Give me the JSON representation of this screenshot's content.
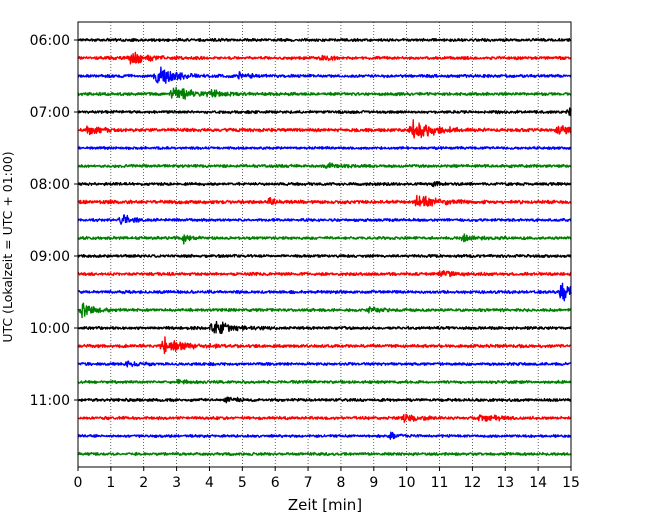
{
  "chart_data": {
    "type": "line",
    "subtype": "helicorder-seismogram",
    "title": "",
    "xlabel": "Zeit  [min]",
    "ylabel": "UTC (Lokalzeit = UTC + 01:00)",
    "xlim": [
      0,
      15
    ],
    "x_ticks": [
      0,
      1,
      2,
      3,
      4,
      5,
      6,
      7,
      8,
      9,
      10,
      11,
      12,
      13,
      14,
      15
    ],
    "x_tick_labels": [
      "0",
      "1",
      "2",
      "3",
      "4",
      "5",
      "6",
      "7",
      "8",
      "9",
      "10",
      "11",
      "12",
      "13",
      "14",
      "15"
    ],
    "vertical_grid": "dotted",
    "minutes_per_trace": 15,
    "start_time_utc": "06:00",
    "y_tick_labels": [
      "06:00",
      "07:00",
      "08:00",
      "09:00",
      "10:00",
      "11:00"
    ],
    "y_tick_trace_indices": [
      0,
      4,
      8,
      12,
      16,
      20
    ],
    "color_cycle": [
      "#000000",
      "#ff0000",
      "#0000ff",
      "#008000"
    ],
    "traces": [
      {
        "amplitude": 0.38,
        "events": []
      },
      {
        "amplitude": 0.4,
        "events": [
          {
            "t": 1.6,
            "a": 1.9,
            "w": 0.45
          },
          {
            "t": 7.4,
            "a": 1.3,
            "w": 0.2
          }
        ]
      },
      {
        "amplitude": 0.4,
        "events": [
          {
            "t": 2.4,
            "a": 2.4,
            "w": 0.5
          },
          {
            "t": 4.9,
            "a": 1.0,
            "w": 0.25
          }
        ]
      },
      {
        "amplitude": 0.4,
        "events": [
          {
            "t": 2.9,
            "a": 2.2,
            "w": 0.5
          },
          {
            "t": 4.0,
            "a": 0.9,
            "w": 0.3
          }
        ]
      },
      {
        "amplitude": 0.38,
        "events": [
          {
            "t": 14.9,
            "a": 1.6,
            "w": 0.15
          }
        ]
      },
      {
        "amplitude": 0.45,
        "events": [
          {
            "t": 0.3,
            "a": 1.4,
            "w": 0.3
          },
          {
            "t": 10.2,
            "a": 3.0,
            "w": 0.55
          },
          {
            "t": 14.6,
            "a": 1.2,
            "w": 0.4
          }
        ]
      },
      {
        "amplitude": 0.35,
        "events": []
      },
      {
        "amplitude": 0.38,
        "events": [
          {
            "t": 7.5,
            "a": 0.9,
            "w": 0.3
          }
        ]
      },
      {
        "amplitude": 0.38,
        "events": [
          {
            "t": 10.8,
            "a": 0.8,
            "w": 0.15
          }
        ]
      },
      {
        "amplitude": 0.45,
        "events": [
          {
            "t": 5.8,
            "a": 0.9,
            "w": 0.3
          },
          {
            "t": 10.3,
            "a": 1.9,
            "w": 0.5
          }
        ]
      },
      {
        "amplitude": 0.38,
        "events": [
          {
            "t": 1.3,
            "a": 1.5,
            "w": 0.3
          }
        ]
      },
      {
        "amplitude": 0.38,
        "events": [
          {
            "t": 3.2,
            "a": 1.3,
            "w": 0.15
          },
          {
            "t": 11.7,
            "a": 1.0,
            "w": 0.3
          }
        ]
      },
      {
        "amplitude": 0.38,
        "events": []
      },
      {
        "amplitude": 0.4,
        "events": [
          {
            "t": 11.0,
            "a": 0.9,
            "w": 0.3
          }
        ]
      },
      {
        "amplitude": 0.4,
        "events": [
          {
            "t": 14.7,
            "a": 2.7,
            "w": 0.45
          }
        ]
      },
      {
        "amplitude": 0.4,
        "events": [
          {
            "t": 0.1,
            "a": 2.6,
            "w": 0.25
          },
          {
            "t": 8.8,
            "a": 0.8,
            "w": 0.3
          }
        ]
      },
      {
        "amplitude": 0.38,
        "events": [
          {
            "t": 4.1,
            "a": 2.1,
            "w": 0.5
          }
        ]
      },
      {
        "amplitude": 0.42,
        "events": [
          {
            "t": 2.6,
            "a": 2.2,
            "w": 0.6
          }
        ]
      },
      {
        "amplitude": 0.38,
        "events": [
          {
            "t": 1.5,
            "a": 0.9,
            "w": 0.3
          }
        ]
      },
      {
        "amplitude": 0.38,
        "events": [
          {
            "t": 3.0,
            "a": 0.8,
            "w": 0.2
          }
        ]
      },
      {
        "amplitude": 0.38,
        "events": [
          {
            "t": 4.5,
            "a": 0.8,
            "w": 0.3
          }
        ]
      },
      {
        "amplitude": 0.4,
        "events": [
          {
            "t": 9.9,
            "a": 1.2,
            "w": 0.35
          },
          {
            "t": 12.2,
            "a": 1.2,
            "w": 0.45
          }
        ]
      },
      {
        "amplitude": 0.35,
        "events": [
          {
            "t": 9.5,
            "a": 0.9,
            "w": 0.2
          }
        ]
      },
      {
        "amplitude": 0.38,
        "events": []
      }
    ]
  }
}
